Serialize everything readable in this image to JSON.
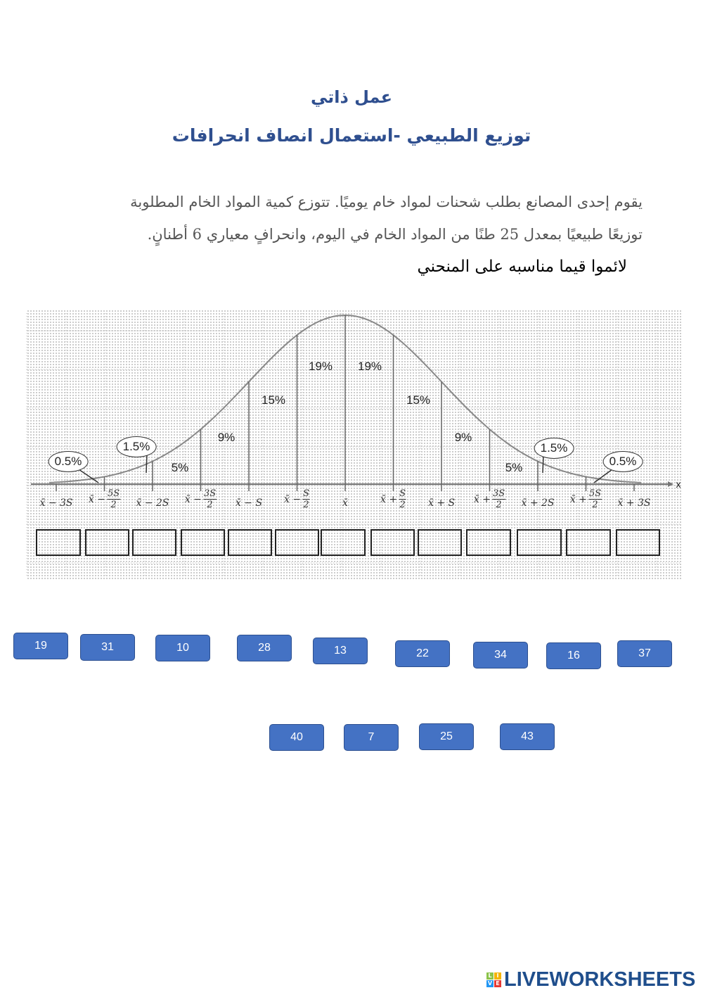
{
  "header": {
    "title": "عمل ذاتي",
    "subtitle": "توزيع الطبيعي -استعمال انصاف انحرافات"
  },
  "problem": {
    "line1": "يقوم إحدى المصانع بطلب شحنات لمواد خام يوميًا. تتوزع كمية المواد الخام المطلوبة",
    "line2": "توزيعًا طبيعيًا بمعدل 25 طنًا من المواد الخام في اليوم، وانحرافٍ معياري 6 أطنانٍ."
  },
  "instruction": "لائموا قيما مناسبه على المنحني",
  "diagram": {
    "axis_label": "x",
    "percentages": [
      "0.5%",
      "1.5%",
      "5%",
      "9%",
      "15%",
      "19%",
      "19%",
      "15%",
      "9%",
      "5%",
      "1.5%",
      "0.5%"
    ],
    "ticks": [
      {
        "prefix": "x̄ − 3S"
      },
      {
        "prefix": "x̄ −",
        "num": "5S",
        "den": "2"
      },
      {
        "prefix": "x̄ − 2S"
      },
      {
        "prefix": "x̄ −",
        "num": "3S",
        "den": "2"
      },
      {
        "prefix": "x̄ − S"
      },
      {
        "prefix": "x̄ −",
        "num": "S",
        "den": "2"
      },
      {
        "prefix": "x̄"
      },
      {
        "prefix": "x̄ +",
        "num": "S",
        "den": "2"
      },
      {
        "prefix": "x̄ + S"
      },
      {
        "prefix": "x̄ +",
        "num": "3S",
        "den": "2"
      },
      {
        "prefix": "x̄ + 2S"
      },
      {
        "prefix": "x̄ +",
        "num": "5S",
        "den": "2"
      },
      {
        "prefix": "x̄ + 3S"
      }
    ],
    "answer_box_count": 13
  },
  "answer_chips": [
    "19",
    "31",
    "10",
    "28",
    "13",
    "22",
    "34",
    "16",
    "37",
    "40",
    "7",
    "25",
    "43"
  ],
  "colors": {
    "title": "#2f4f8f",
    "chip": "#4472c4",
    "chip_border": "#2c4f8f",
    "logo": "#1f4e8c"
  },
  "footer": {
    "logo_text": "LIVEWORKSHEETS",
    "logo_blocks": [
      "L",
      "I",
      "V",
      "E"
    ]
  }
}
